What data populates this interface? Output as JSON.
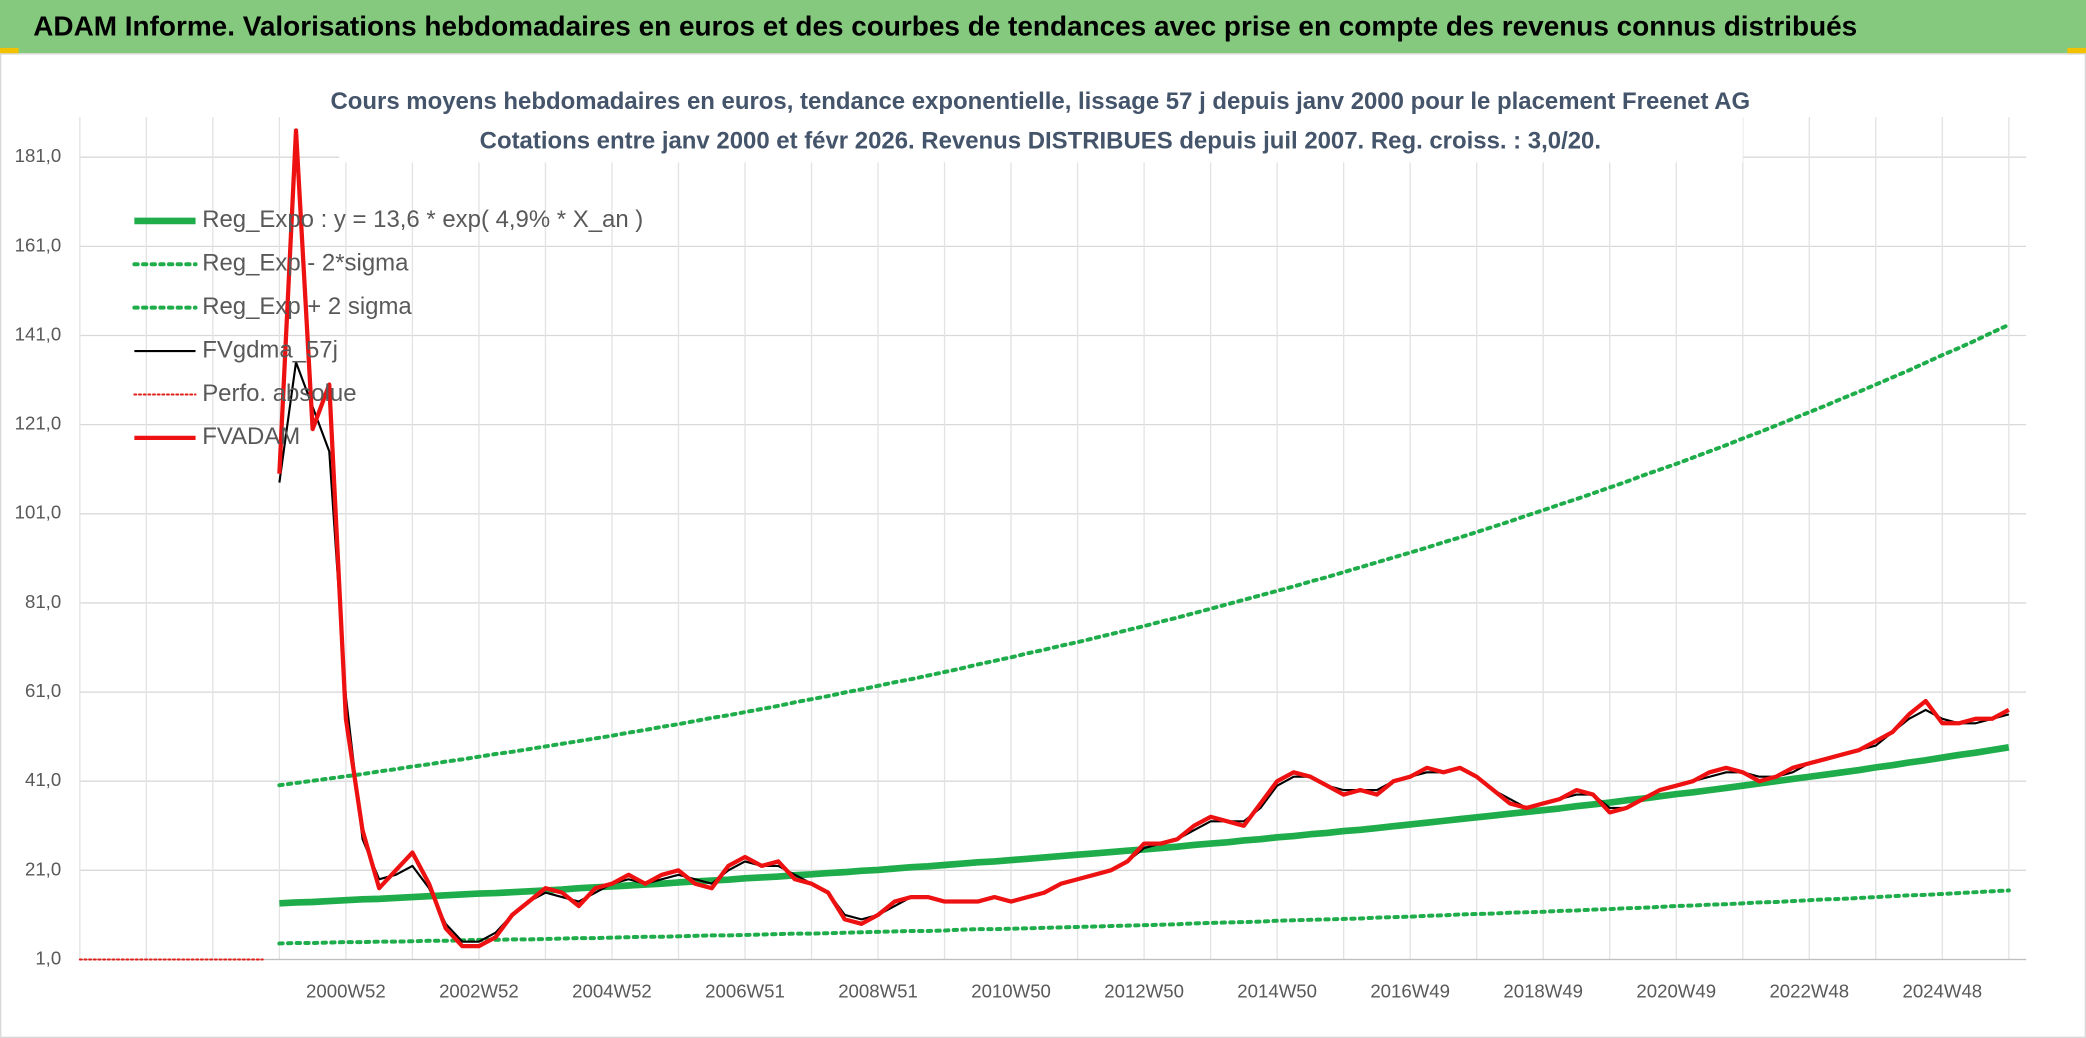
{
  "chart_data": {
    "type": "line",
    "header": "ADAM Informe. Valorisations hebdomadaires en euros et des courbes de tendances avec prise en compte des revenus connus distribués",
    "title": "Cours moyens hebdomadaires en euros, tendance exponentielle, lissage 57 j depuis janv 2000 pour le placement Freenet AG",
    "subtitle": "Cotations entre janv 2000 et févr 2026. Revenus DISTRIBUES depuis juil 2007. Reg. croiss. : 3,0/20.",
    "categories": [
      null,
      null,
      null,
      null,
      null,
      null,
      null,
      null,
      null,
      null,
      null,
      null,
      null,
      null,
      null,
      null,
      "2000W52",
      null,
      null,
      null,
      null,
      null,
      null,
      null,
      "2002W52",
      null,
      null,
      null,
      null,
      null,
      null,
      null,
      "2004W52",
      null,
      null,
      null,
      null,
      null,
      null,
      null,
      "2006W51",
      null,
      null,
      null,
      null,
      null,
      null,
      null,
      "2008W51",
      null,
      null,
      null,
      null,
      null,
      null,
      null,
      "2010W50",
      null,
      null,
      null,
      null,
      null,
      null,
      null,
      "2012W50",
      null,
      null,
      null,
      null,
      null,
      null,
      null,
      "2014W50",
      null,
      null,
      null,
      null,
      null,
      null,
      null,
      "2016W49",
      null,
      null,
      null,
      null,
      null,
      null,
      null,
      "2018W49",
      null,
      null,
      null,
      null,
      null,
      null,
      null,
      "2020W49",
      null,
      null,
      null,
      null,
      null,
      null,
      null,
      "2022W48",
      null,
      null,
      null,
      null,
      null,
      null,
      null,
      "2024W48",
      null,
      null,
      null,
      null
    ],
    "ylim": [
      1,
      190
    ],
    "yticks": [
      {
        "value": 1,
        "label": "1,0"
      },
      {
        "value": 21,
        "label": "21,0"
      },
      {
        "value": 41,
        "label": "41,0"
      },
      {
        "value": 61,
        "label": "61,0"
      },
      {
        "value": 81,
        "label": "81,0"
      },
      {
        "value": 101,
        "label": "101,0"
      },
      {
        "value": 121,
        "label": "121,0"
      },
      {
        "value": 141,
        "label": "141,0"
      },
      {
        "value": 161,
        "label": "161,0"
      },
      {
        "value": 181,
        "label": "181,0"
      }
    ],
    "grid": true,
    "legend": "upper left",
    "series": [
      {
        "name": "Reg_Expo : y = 13,6 * exp( 4,9% *  X_an )",
        "color": "#1fad4b",
        "line_style": "thick",
        "values": [
          null,
          null,
          null,
          null,
          null,
          null,
          null,
          null,
          null,
          null,
          null,
          null,
          13.6,
          13.8,
          13.9,
          14.1,
          14.3,
          14.5,
          14.6,
          14.8,
          15.0,
          15.2,
          15.4,
          15.6,
          15.8,
          15.9,
          16.1,
          16.3,
          16.5,
          16.7,
          17.0,
          17.2,
          17.4,
          17.6,
          17.8,
          18.0,
          18.3,
          18.5,
          18.7,
          18.9,
          19.2,
          19.4,
          19.6,
          19.9,
          20.1,
          20.4,
          20.6,
          20.9,
          21.1,
          21.4,
          21.7,
          21.9,
          22.2,
          22.5,
          22.8,
          23.0,
          23.3,
          23.6,
          23.9,
          24.2,
          24.5,
          24.8,
          25.1,
          25.4,
          25.7,
          26.0,
          26.3,
          26.7,
          27.0,
          27.3,
          27.7,
          28.0,
          28.4,
          28.7,
          29.1,
          29.4,
          29.8,
          30.1,
          30.5,
          30.9,
          31.3,
          31.7,
          32.1,
          32.5,
          32.9,
          33.3,
          33.7,
          34.1,
          34.5,
          34.9,
          35.4,
          35.8,
          36.2,
          36.7,
          37.1,
          37.6,
          38.1,
          38.5,
          39.0,
          39.5,
          40.0,
          40.5,
          41.0,
          41.5,
          42.0,
          42.5,
          43.0,
          43.5,
          44.1,
          44.6,
          45.2,
          45.7,
          46.3,
          46.9,
          47.4,
          48.0,
          48.6
        ]
      },
      {
        "name": "Reg_Exp - 2*sigma",
        "color": "#1fad4b",
        "line_style": "dotted",
        "values": [
          null,
          null,
          null,
          null,
          null,
          null,
          null,
          null,
          null,
          null,
          null,
          null,
          4.6,
          4.7,
          4.7,
          4.8,
          4.9,
          4.9,
          5.0,
          5.0,
          5.1,
          5.2,
          5.2,
          5.3,
          5.4,
          5.4,
          5.5,
          5.5,
          5.6,
          5.7,
          5.8,
          5.8,
          5.9,
          6.0,
          6.1,
          6.1,
          6.2,
          6.3,
          6.4,
          6.4,
          6.5,
          6.6,
          6.7,
          6.8,
          6.8,
          6.9,
          7.0,
          7.1,
          7.2,
          7.3,
          7.4,
          7.4,
          7.5,
          7.7,
          7.8,
          7.8,
          7.9,
          8.0,
          8.1,
          8.2,
          8.3,
          8.4,
          8.5,
          8.6,
          8.7,
          8.8,
          8.9,
          9.1,
          9.2,
          9.3,
          9.4,
          9.5,
          9.7,
          9.8,
          9.9,
          10.0,
          10.1,
          10.2,
          10.4,
          10.5,
          10.6,
          10.8,
          10.9,
          11.1,
          11.2,
          11.3,
          11.5,
          11.6,
          11.7,
          11.9,
          12.0,
          12.2,
          12.3,
          12.5,
          12.6,
          12.8,
          13.0,
          13.1,
          13.3,
          13.4,
          13.6,
          13.8,
          13.9,
          14.1,
          14.3,
          14.5,
          14.6,
          14.8,
          15.0,
          15.2,
          15.4,
          15.5,
          15.7,
          15.9,
          16.1,
          16.3,
          16.5
        ]
      },
      {
        "name": "Reg_Exp + 2 sigma",
        "color": "#1fad4b",
        "line_style": "dotted",
        "values": [
          null,
          null,
          null,
          null,
          null,
          null,
          null,
          null,
          null,
          null,
          null,
          null,
          40.1,
          40.6,
          41.1,
          41.6,
          42.1,
          42.6,
          43.2,
          43.7,
          44.3,
          44.8,
          45.4,
          45.9,
          46.5,
          47.1,
          47.6,
          48.2,
          48.8,
          49.4,
          50.0,
          50.6,
          51.2,
          51.9,
          52.5,
          53.2,
          53.8,
          54.5,
          55.2,
          55.8,
          56.5,
          57.2,
          57.9,
          58.7,
          59.4,
          60.1,
          60.9,
          61.6,
          62.4,
          63.2,
          63.9,
          64.7,
          65.5,
          66.3,
          67.2,
          68.0,
          68.8,
          69.7,
          70.5,
          71.4,
          72.2,
          73.1,
          74.0,
          74.9,
          75.8,
          76.8,
          77.7,
          78.7,
          79.7,
          80.7,
          81.7,
          82.7,
          83.7,
          84.7,
          85.8,
          86.8,
          87.9,
          89.0,
          90.1,
          91.2,
          92.3,
          93.4,
          94.6,
          95.7,
          96.9,
          98.1,
          99.3,
          100.6,
          101.8,
          103.1,
          104.3,
          105.6,
          106.9,
          108.2,
          109.6,
          110.9,
          112.2,
          113.6,
          115.0,
          116.4,
          117.9,
          119.3,
          120.8,
          122.3,
          123.8,
          125.3,
          126.9,
          128.4,
          130.0,
          131.6,
          133.2,
          134.9,
          136.6,
          138.2,
          139.9,
          141.7,
          143.4
        ]
      },
      {
        "name": "FVgdma_57j",
        "color": "#000000",
        "line_style": "thin",
        "values": [
          null,
          null,
          null,
          null,
          null,
          null,
          null,
          null,
          null,
          null,
          null,
          null,
          108,
          135,
          125,
          115,
          60,
          28,
          19,
          20,
          22,
          17,
          9,
          5,
          5,
          7,
          11,
          14,
          16,
          15,
          14,
          16,
          18,
          19,
          18,
          19,
          20,
          19,
          18,
          21,
          23,
          22,
          22,
          20,
          18,
          16,
          11,
          10,
          11,
          13,
          15,
          15,
          14,
          14,
          14,
          15,
          14,
          15,
          16,
          18,
          19,
          20,
          21,
          23,
          26,
          27,
          28,
          30,
          32,
          32,
          32,
          35,
          40,
          42,
          42,
          40,
          39,
          39,
          39,
          41,
          42,
          43,
          43,
          44,
          42,
          39,
          37,
          35,
          36,
          37,
          38,
          38,
          35,
          35,
          37,
          39,
          40,
          41,
          42,
          43,
          43,
          42,
          42,
          43,
          45,
          46,
          47,
          48,
          49,
          52,
          55,
          57,
          55,
          54,
          54,
          55,
          56
        ]
      },
      {
        "name": "Perfo. absolue",
        "color": "#e0201b",
        "line_style": "fine-dotted",
        "values": [
          1,
          1,
          1,
          1,
          1,
          1,
          1,
          1,
          1,
          1,
          1,
          1,
          null,
          null,
          null,
          null,
          null,
          null,
          null,
          null,
          null,
          null,
          null,
          null,
          null,
          null,
          null,
          null,
          null,
          null,
          null,
          null,
          null,
          null,
          null,
          null,
          null,
          null,
          null,
          null,
          null,
          null,
          null,
          null,
          null,
          null,
          null,
          null,
          null,
          null,
          null,
          null,
          null,
          null,
          null,
          null,
          null,
          null,
          null,
          null,
          null,
          null,
          null,
          null,
          null,
          null,
          null,
          null,
          null,
          null,
          null,
          null,
          null,
          null,
          null,
          null,
          null,
          null,
          null,
          null,
          null,
          null,
          null,
          null,
          null,
          null,
          null,
          null,
          null,
          null,
          null,
          null,
          null,
          null,
          null,
          null,
          null,
          null,
          null,
          null,
          null,
          null,
          null,
          null,
          null,
          null,
          null,
          null,
          null,
          null,
          null,
          null,
          null,
          null,
          null,
          null,
          null
        ]
      },
      {
        "name": "FVADAM",
        "color": "#ee1111",
        "line_style": "medium",
        "values": [
          null,
          null,
          null,
          null,
          null,
          null,
          null,
          null,
          null,
          null,
          null,
          null,
          110,
          187,
          120,
          130,
          55,
          30,
          17,
          21,
          25,
          18,
          8,
          4,
          4,
          6,
          11,
          14,
          17,
          16,
          13,
          17,
          18,
          20,
          18,
          20,
          21,
          18,
          17,
          22,
          24,
          22,
          23,
          19,
          18,
          16,
          10,
          9,
          11,
          14,
          15,
          15,
          14,
          14,
          14,
          15,
          14,
          15,
          16,
          18,
          19,
          20,
          21,
          23,
          27,
          27,
          28,
          31,
          33,
          32,
          31,
          36,
          41,
          43,
          42,
          40,
          38,
          39,
          38,
          41,
          42,
          44,
          43,
          44,
          42,
          39,
          36,
          35,
          36,
          37,
          39,
          38,
          34,
          35,
          37,
          39,
          40,
          41,
          43,
          44,
          43,
          41,
          42,
          44,
          45,
          46,
          47,
          48,
          50,
          52,
          56,
          59,
          54,
          54,
          55,
          55,
          57
        ]
      }
    ]
  }
}
